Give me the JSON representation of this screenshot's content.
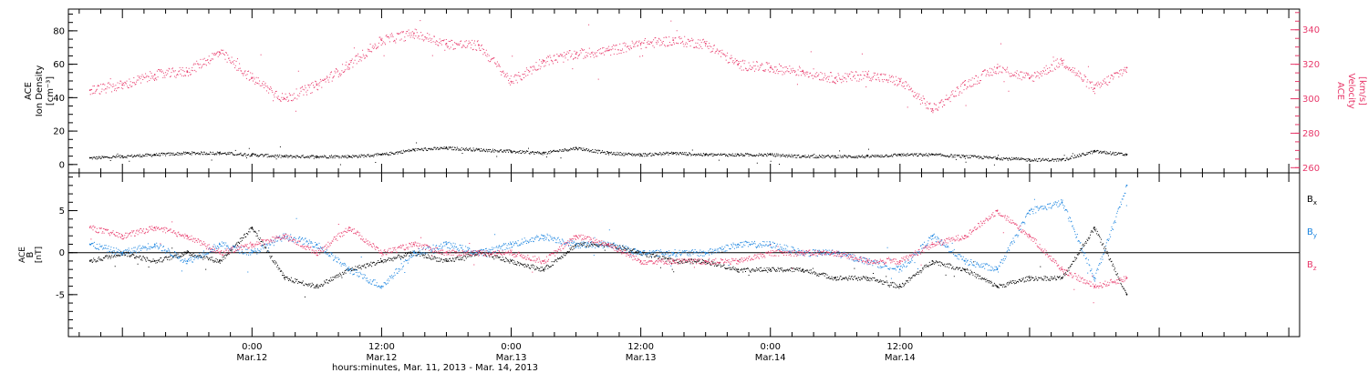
{
  "colors": {
    "black": "#000000",
    "pink": "#e8386a",
    "blue": "#1a84e0",
    "axis": "#000000"
  },
  "chart_data": [
    {
      "type": "scatter",
      "panel": "top",
      "ylabel": [
        "ACE",
        "Ion Density",
        "[cm⁻³]"
      ],
      "y2label": [
        "ACE",
        "Velocity",
        "[km/s]"
      ],
      "ylim": [
        -5,
        93
      ],
      "y2lim": [
        257,
        352
      ],
      "yticks": [
        "0",
        "20",
        "40",
        "60",
        "80"
      ],
      "y2ticks": [
        "260",
        "280",
        "300",
        "320",
        "340"
      ],
      "series": [
        {
          "axis": "left",
          "color": "black",
          "x": [
            -15,
            -12,
            -9,
            -6,
            -3,
            0,
            3,
            6,
            9,
            12,
            15,
            18,
            21,
            24,
            27,
            30,
            33,
            36,
            39,
            42,
            45,
            48,
            51,
            54,
            57,
            60,
            63,
            66,
            69,
            72,
            75,
            78,
            81
          ],
          "values": [
            4,
            5,
            6,
            7,
            7,
            6,
            5,
            5,
            5,
            6,
            9,
            10,
            9,
            8,
            7,
            10,
            7,
            6,
            7,
            6,
            6,
            6,
            5,
            5,
            5,
            6,
            6,
            5,
            4,
            3,
            3,
            8,
            6
          ]
        },
        {
          "axis": "right",
          "color": "pink",
          "x": [
            -15,
            -12,
            -9,
            -6,
            -3,
            0,
            3,
            6,
            9,
            12,
            15,
            18,
            21,
            24,
            27,
            30,
            33,
            36,
            39,
            42,
            45,
            48,
            51,
            54,
            57,
            60,
            63,
            66,
            69,
            72,
            75,
            78,
            81
          ],
          "values": [
            305,
            308,
            314,
            316,
            327,
            312,
            300,
            308,
            320,
            334,
            338,
            332,
            331,
            310,
            322,
            326,
            328,
            332,
            334,
            332,
            320,
            318,
            316,
            312,
            314,
            310,
            294,
            308,
            318,
            312,
            322,
            306,
            318
          ]
        }
      ]
    },
    {
      "type": "scatter",
      "panel": "bottom",
      "ylabel": [
        "ACE",
        "B",
        "[nT]"
      ],
      "ylim": [
        -10,
        9.5
      ],
      "yticks": [
        "-5",
        "0",
        "5"
      ],
      "zero_line": true,
      "legend": {
        "placement": "right",
        "entries": [
          "Bx",
          "By",
          "Bz"
        ]
      },
      "series": [
        {
          "name": "Bx",
          "color": "black",
          "x": [
            -15,
            -12,
            -9,
            -6,
            -3,
            0,
            3,
            6,
            9,
            12,
            15,
            18,
            21,
            24,
            27,
            30,
            33,
            36,
            39,
            42,
            45,
            48,
            51,
            54,
            57,
            60,
            63,
            66,
            69,
            72,
            75,
            78,
            81
          ],
          "values": [
            -1,
            0,
            -1,
            0,
            -1,
            3,
            -3,
            -4,
            -2,
            -1,
            0,
            -1,
            0,
            -1,
            -2,
            1,
            1,
            0,
            -1,
            -1,
            -2,
            -2,
            -2,
            -3,
            -3,
            -4,
            -1,
            -2,
            -4,
            -3,
            -3,
            3,
            -5
          ]
        },
        {
          "name": "By",
          "color": "blue",
          "x": [
            -15,
            -12,
            -9,
            -6,
            -3,
            0,
            3,
            6,
            9,
            12,
            15,
            18,
            21,
            24,
            27,
            30,
            33,
            36,
            39,
            42,
            45,
            48,
            51,
            54,
            57,
            60,
            63,
            66,
            69,
            72,
            75,
            78,
            81
          ],
          "values": [
            1,
            0,
            1,
            -1,
            1,
            0,
            2,
            1,
            -2,
            -4,
            0,
            1,
            0,
            1,
            2,
            1,
            1,
            0,
            0,
            0,
            1,
            1,
            0,
            0,
            -1,
            -2,
            2,
            -1,
            -2,
            5,
            6,
            -3,
            8
          ]
        },
        {
          "name": "Bz",
          "color": "pink",
          "x": [
            -15,
            -12,
            -9,
            -6,
            -3,
            0,
            3,
            6,
            9,
            12,
            15,
            18,
            21,
            24,
            27,
            30,
            33,
            36,
            39,
            42,
            45,
            48,
            51,
            54,
            57,
            60,
            63,
            66,
            69,
            72,
            75,
            78,
            81
          ],
          "values": [
            3,
            2,
            3,
            2,
            0,
            1,
            2,
            0,
            3,
            0,
            1,
            0,
            0,
            0,
            -1,
            2,
            1,
            -1,
            -1,
            -1,
            -1,
            0,
            0,
            0,
            -1,
            -1,
            1,
            2,
            5,
            2,
            -2,
            -4,
            -3
          ]
        }
      ]
    }
  ],
  "x_axis": {
    "range_hours": [
      -17,
      97
    ],
    "ticks": [
      {
        "hour": 0,
        "time": "0:00",
        "date": "Mar.12"
      },
      {
        "hour": 12,
        "time": "12:00",
        "date": "Mar.12"
      },
      {
        "hour": 24,
        "time": "0:00",
        "date": "Mar.13"
      },
      {
        "hour": 36,
        "time": "12:00",
        "date": "Mar.13"
      },
      {
        "hour": 48,
        "time": "0:00",
        "date": "Mar.14"
      },
      {
        "hour": 60,
        "time": "12:00",
        "date": "Mar.14"
      }
    ],
    "label": "hours:minutes, Mar. 11, 2013 - Mar. 14, 2013"
  }
}
